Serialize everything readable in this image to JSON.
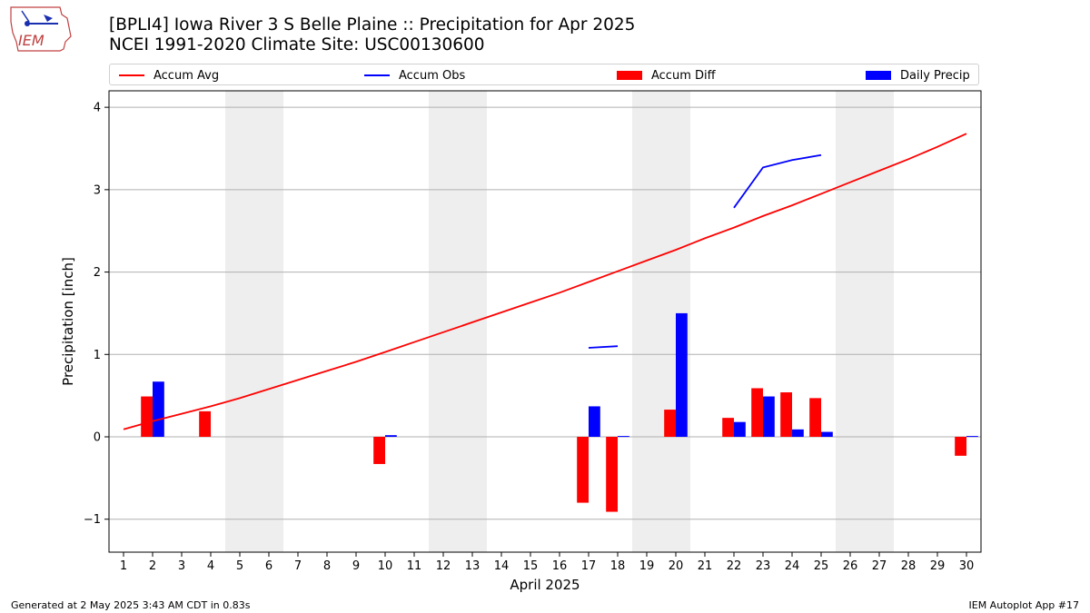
{
  "header": {
    "title_line1": "[BPLI4] Iowa River 3 S Belle Plaine :: Precipitation for Apr 2025",
    "title_line2": "NCEI 1991-2020 Climate Site: USC00130600",
    "logo_text": "IEM"
  },
  "footer": {
    "left": "Generated at 2 May 2025 3:43 AM CDT in 0.83s",
    "right": "IEM Autoplot App #17"
  },
  "colors": {
    "avg": "#ff0000",
    "obs": "#0000ff",
    "diff": "#ff0000",
    "daily": "#0000ff",
    "weekend": "#eeeeee",
    "grid": "#b0b0b0"
  },
  "chart_data": {
    "type": "bar",
    "xlabel": "April 2025",
    "ylabel": "Precipitation [inch]",
    "xlim": [
      0.5,
      30.5
    ],
    "ylim": [
      -1.4,
      4.2
    ],
    "yticks": [
      -1,
      0,
      1,
      2,
      3,
      4
    ],
    "ytick_labels": [
      "−1",
      "0",
      "1",
      "2",
      "3",
      "4"
    ],
    "x": [
      1,
      2,
      3,
      4,
      5,
      6,
      7,
      8,
      9,
      10,
      11,
      12,
      13,
      14,
      15,
      16,
      17,
      18,
      19,
      20,
      21,
      22,
      23,
      24,
      25,
      26,
      27,
      28,
      29,
      30
    ],
    "weekend_days": [
      5,
      6,
      12,
      13,
      19,
      20,
      26,
      27
    ],
    "grid": "y",
    "legend_position": "top",
    "series": [
      {
        "name": "Accum Avg",
        "kind": "line",
        "values": [
          0.09,
          0.19,
          0.28,
          0.37,
          0.47,
          0.58,
          0.69,
          0.8,
          0.91,
          1.03,
          1.15,
          1.27,
          1.39,
          1.51,
          1.63,
          1.75,
          1.88,
          2.01,
          2.14,
          2.27,
          2.41,
          2.54,
          2.68,
          2.81,
          2.95,
          3.09,
          3.23,
          3.37,
          3.52,
          3.68
        ]
      },
      {
        "name": "Accum Obs",
        "kind": "line",
        "values": [
          null,
          null,
          null,
          null,
          null,
          null,
          null,
          null,
          null,
          null,
          null,
          null,
          null,
          null,
          null,
          null,
          1.08,
          1.1,
          null,
          null,
          null,
          2.78,
          3.27,
          3.36,
          3.42,
          null,
          null,
          null,
          null,
          null
        ]
      },
      {
        "name": "Accum Diff",
        "kind": "bar",
        "values": [
          0,
          0.49,
          0,
          0.31,
          0,
          0,
          0,
          0,
          0,
          -0.33,
          0,
          0,
          0,
          0,
          0,
          0,
          -0.8,
          -0.91,
          0,
          0.33,
          0,
          0.23,
          0.59,
          0.54,
          0.47,
          0,
          0,
          0,
          0,
          -0.23
        ]
      },
      {
        "name": "Daily Precip",
        "kind": "bar",
        "values": [
          0,
          0.67,
          0,
          0,
          0,
          0,
          0,
          0,
          0,
          0.02,
          0,
          0,
          0,
          0,
          0,
          0,
          0.37,
          0.01,
          0,
          1.5,
          0,
          0.18,
          0.49,
          0.09,
          0.06,
          0,
          0,
          0,
          0,
          0.01
        ]
      }
    ]
  }
}
